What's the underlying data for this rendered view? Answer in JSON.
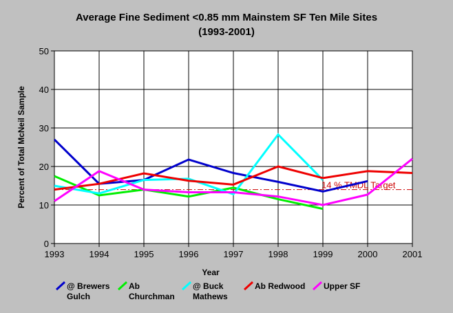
{
  "chart_data": {
    "type": "line",
    "title": "Average Fine Sediment <0.85 mm Mainstem SF Ten Mile Sites",
    "subtitle": "(1993-2001)",
    "xlabel": "Year",
    "ylabel": "Percent of Total McNeil Sample",
    "x": [
      1993,
      1994,
      1995,
      1996,
      1997,
      1998,
      1999,
      2000,
      2001
    ],
    "xlim": [
      1993,
      2001
    ],
    "ylim": [
      0,
      50
    ],
    "yticks": [
      0,
      10,
      20,
      30,
      40,
      50
    ],
    "grid": true,
    "legend_position": "bottom",
    "series": [
      {
        "name": "@ Brewers Gulch",
        "legend_lines": [
          "@ Brewers",
          "Gulch"
        ],
        "color": "#0000cc",
        "values": [
          27,
          15.5,
          16.5,
          21.8,
          18.3,
          16,
          13.5,
          16.2,
          null
        ]
      },
      {
        "name": "Ab Churchman",
        "legend_lines": [
          "Ab",
          "Churchman"
        ],
        "color": "#00ee00",
        "values": [
          17.5,
          12.5,
          14,
          12.2,
          14.5,
          11.5,
          9,
          null,
          null
        ]
      },
      {
        "name": "@ Buck Mathews",
        "legend_lines": [
          "@ Buck",
          "Mathews"
        ],
        "color": "#00ffff",
        "values": [
          15,
          13,
          16.5,
          16.8,
          12.8,
          28.3,
          16.5,
          null,
          null
        ]
      },
      {
        "name": "Ab Redwood",
        "legend_lines": [
          "Ab Redwood"
        ],
        "color": "#ee0000",
        "values": [
          14,
          15.5,
          18.2,
          16.3,
          15.3,
          20,
          17,
          18.8,
          18.3
        ]
      },
      {
        "name": "Upper SF",
        "legend_lines": [
          "Upper SF"
        ],
        "color": "#ff00ff",
        "values": [
          11,
          18.8,
          14,
          13.3,
          13.3,
          12.2,
          10,
          12.7,
          22
        ]
      }
    ],
    "target": {
      "value": 14,
      "label": "14 % TMDL Target",
      "color": "#cc0000"
    }
  }
}
